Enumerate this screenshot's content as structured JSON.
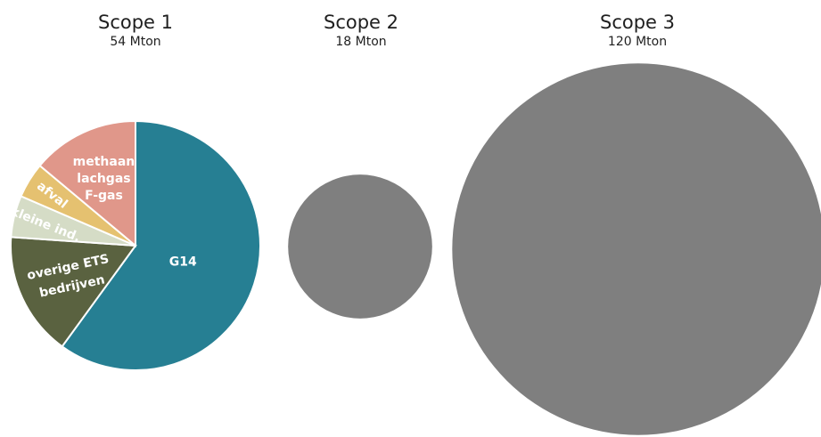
{
  "chart_data": [
    {
      "type": "pie",
      "title": "Scope 1",
      "subtitle": "54 Mton",
      "total_mton": 54,
      "slices": [
        {
          "label": "G14",
          "share": 0.6,
          "color": "#267f93"
        },
        {
          "label": "overige ETS bedrijven",
          "label_lines": [
            "overige ETS",
            "bedrijven"
          ],
          "share": 0.161,
          "color": "#5a6240"
        },
        {
          "label": "kleine ind.",
          "label_lines": [
            "kleine ind."
          ],
          "share": 0.054,
          "color": "#d5dcc6"
        },
        {
          "label": "afval",
          "label_lines": [
            "afval"
          ],
          "share": 0.046,
          "color": "#e5c170"
        },
        {
          "label": "methaan lachgas F-gas",
          "label_lines": [
            "methaan",
            "lachgas",
            "F-gas"
          ],
          "share": 0.139,
          "color": "#e0978a"
        }
      ]
    },
    {
      "type": "bubble",
      "title": "Scope 2",
      "subtitle": "18 Mton",
      "total_mton": 18,
      "color": "#7f7f7f"
    },
    {
      "type": "bubble",
      "title": "Scope 3",
      "subtitle": "120 Mton",
      "total_mton": 120,
      "color": "#7f7f7f"
    }
  ]
}
